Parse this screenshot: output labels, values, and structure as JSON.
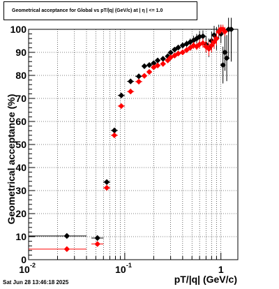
{
  "title": "Geometrical acceptance for Global vs pT/|q| (GeV/c) at |  η  | <= 1.0",
  "timestamp": "Sat Jun 28 13:46:18 2025",
  "chart_data": {
    "type": "scatter",
    "title": "Geometrical acceptance for Global vs pT/|q| (GeV/c) at |  η  | <= 1.0",
    "xlabel": "pT/|q| (GeV/c)",
    "ylabel": "Geometrical acceptance (%)",
    "xscale": "log",
    "xlim": [
      0.01,
      1.5
    ],
    "ylim": [
      0,
      100
    ],
    "yticks": [
      0,
      10,
      20,
      30,
      40,
      50,
      60,
      70,
      80,
      90,
      100
    ],
    "ytick_labels": [
      "0",
      "10",
      "20",
      "30",
      "40",
      "50",
      "60",
      "70",
      "80",
      "90",
      "100"
    ],
    "xticks": [
      0.01,
      0.1,
      1
    ],
    "xtick_labels": [
      "10^-2",
      "10^-1",
      "1"
    ],
    "grid": true,
    "series": [
      {
        "color": "#000000",
        "marker": "diamond",
        "x": [
          0.025,
          0.052,
          0.065,
          0.078,
          0.092,
          0.115,
          0.14,
          0.16,
          0.18,
          0.2,
          0.22,
          0.25,
          0.28,
          0.3,
          0.33,
          0.36,
          0.4,
          0.44,
          0.48,
          0.52,
          0.56,
          0.6,
          0.65,
          0.7,
          0.75,
          0.8,
          0.85,
          0.9,
          0.95,
          1.0,
          1.05,
          1.1,
          1.15,
          1.2,
          1.28
        ],
        "y": [
          10.3,
          9.4,
          33.7,
          56.1,
          71.3,
          77.4,
          79.6,
          84.0,
          84.5,
          85.3,
          86.5,
          87.2,
          88.3,
          89.9,
          91.2,
          92.1,
          93.0,
          93.7,
          94.5,
          95.2,
          96.0,
          96.8,
          97.0,
          93.5,
          92.0,
          95.0,
          97.5,
          96.0,
          99.0,
          98.0,
          84.5,
          90.0,
          87.5,
          100.0,
          100.0
        ],
        "y_err": [
          0,
          0,
          0,
          0,
          0,
          0,
          0,
          1.0,
          1.0,
          1.0,
          1.0,
          1.0,
          1.0,
          1.0,
          1.0,
          1.2,
          1.2,
          1.4,
          1.5,
          2.0,
          2.0,
          2.5,
          2.5,
          3.5,
          4.0,
          4.0,
          4.0,
          5.0,
          3.0,
          4.0,
          8.0,
          8.0,
          10.0,
          12.0,
          14.0
        ]
      },
      {
        "color": "#ff0000",
        "marker": "diamond",
        "x": [
          0.025,
          0.052,
          0.065,
          0.078,
          0.092,
          0.115,
          0.14,
          0.16,
          0.18,
          0.2,
          0.22,
          0.25,
          0.28,
          0.3,
          0.33,
          0.36,
          0.4,
          0.44,
          0.48,
          0.52,
          0.56,
          0.6,
          0.65,
          0.7,
          0.75,
          0.8,
          0.85,
          0.9,
          0.95,
          1.0,
          1.05,
          1.1
        ],
        "y": [
          4.6,
          6.8,
          31.2,
          54.0,
          66.7,
          73.0,
          77.3,
          79.8,
          81.5,
          83.5,
          84.3,
          85.0,
          86.5,
          87.8,
          88.6,
          89.5,
          90.0,
          91.0,
          92.0,
          93.0,
          92.5,
          93.5,
          94.0,
          92.5,
          91.5,
          93.0,
          94.5,
          96.0,
          99.0,
          100.0,
          100.0,
          99.0
        ],
        "y_err": [
          0,
          0,
          0,
          0,
          0,
          0,
          0,
          0.8,
          0.8,
          0.8,
          0.8,
          1.0,
          1.0,
          1.0,
          1.0,
          1.0,
          1.2,
          1.2,
          1.3,
          1.5,
          1.5,
          2.0,
          2.0,
          2.5,
          3.0,
          3.0,
          3.0,
          3.0,
          2.0,
          2.0,
          2.0,
          2.0
        ]
      }
    ]
  }
}
